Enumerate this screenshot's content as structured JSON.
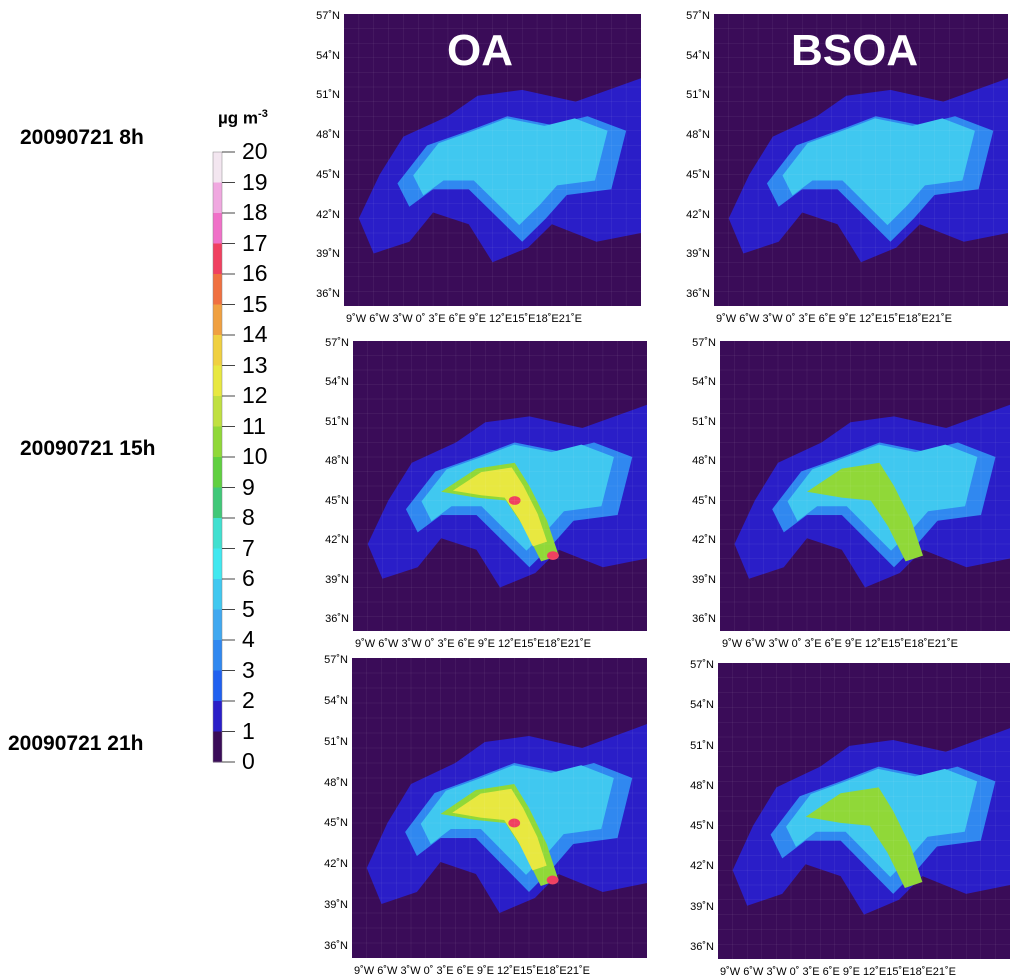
{
  "row_labels": [
    "20090721 8h",
    "20090721 15h",
    "20090721 21h"
  ],
  "column_titles": [
    "OA",
    "BSOA"
  ],
  "colorbar": {
    "unit_main": "µg m",
    "unit_exp": "-3",
    "labels": [
      "20",
      "19",
      "18",
      "17",
      "16",
      "15",
      "14",
      "13",
      "12",
      "11",
      "10",
      "9",
      "8",
      "7",
      "6",
      "5",
      "4",
      "3",
      "2",
      "1",
      "0"
    ],
    "colors": [
      "#f3e6f0",
      "#f0a8e0",
      "#f070c8",
      "#f04060",
      "#f07040",
      "#f0a040",
      "#f0d040",
      "#e8e840",
      "#c0e040",
      "#90d838",
      "#60d040",
      "#40c878",
      "#40e0d0",
      "#40e8f0",
      "#40c8f0",
      "#40a8f0",
      "#3088f0",
      "#2060f0",
      "#2a1ec8",
      "#3a0c58"
    ]
  },
  "axes": {
    "lat_ticks": [
      "57˚N",
      "54˚N",
      "51˚N",
      "48˚N",
      "45˚N",
      "42˚N",
      "39˚N",
      "36˚N"
    ],
    "lon_ticks": "9˚W 6˚W 3˚W  0˚  3˚E 6˚E 9˚E 12˚E15˚E18˚E21˚E"
  },
  "map_colors": {
    "background": "#3a0c58",
    "low": "#2a1ec8",
    "mid": "#3088f0",
    "midhigh": "#40c8f0",
    "high": "#90d838",
    "vhigh": "#e8e840",
    "peak": "#f04060",
    "coast": "#000000"
  }
}
